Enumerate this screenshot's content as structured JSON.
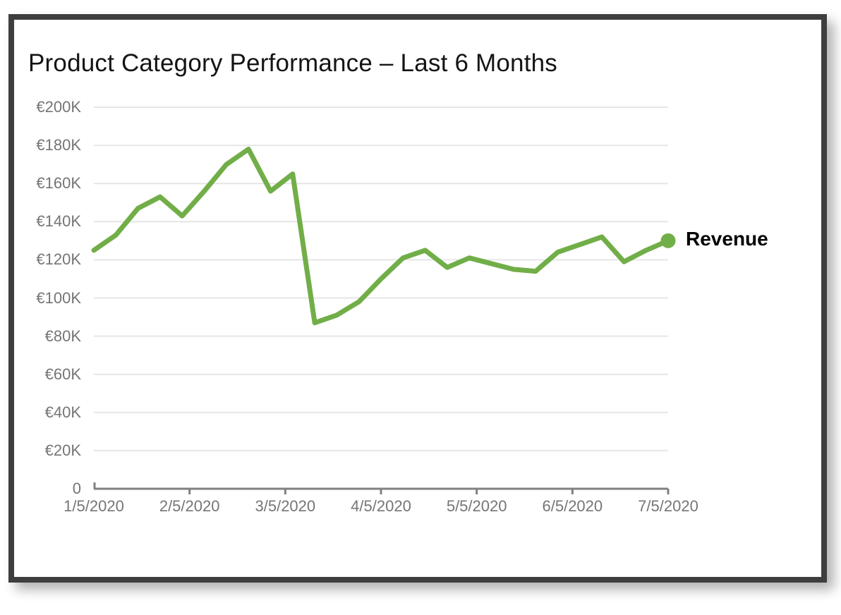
{
  "card": {
    "border_color": "#3E3E3E",
    "background": "#ffffff"
  },
  "chart_data": {
    "type": "line",
    "title": "Product Category Performance – Last 6 Months",
    "x": [
      "1/5/2020",
      "1/12/2020",
      "1/19/2020",
      "1/26/2020",
      "2/2/2020",
      "2/9/2020",
      "2/16/2020",
      "2/23/2020",
      "3/1/2020",
      "3/8/2020",
      "3/15/2020",
      "3/22/2020",
      "3/29/2020",
      "4/5/2020",
      "4/12/2020",
      "4/19/2020",
      "4/26/2020",
      "5/3/2020",
      "5/10/2020",
      "5/17/2020",
      "5/24/2020",
      "5/31/2020",
      "6/7/2020",
      "6/14/2020",
      "6/21/2020",
      "6/28/2020",
      "7/5/2020"
    ],
    "series": [
      {
        "name": "Revenue",
        "color": "#71AE48",
        "values": [
          125000,
          133000,
          147000,
          153000,
          143000,
          156000,
          170000,
          178000,
          156000,
          165000,
          87000,
          91000,
          98000,
          110000,
          121000,
          125000,
          116000,
          121000,
          118000,
          115000,
          114000,
          124000,
          128000,
          132000,
          119000,
          125000,
          130000
        ]
      }
    ],
    "x_tick_labels": [
      "1/5/2020",
      "2/5/2020",
      "3/5/2020",
      "4/5/2020",
      "5/5/2020",
      "6/5/2020",
      "7/5/2020"
    ],
    "y_tick_labels": [
      "0",
      "€20K",
      "€40K",
      "€60K",
      "€80K",
      "€100K",
      "€120K",
      "€140K",
      "€160K",
      "€180K",
      "€200K"
    ],
    "ylim": [
      0,
      200000
    ],
    "y_tick_step": 20000,
    "grid": "horizontal",
    "legend": {
      "label": "Revenue",
      "position": "end-of-line",
      "marker": "circle-dot"
    },
    "colors": {
      "line": "#71AE48",
      "gridline": "#E6E6E6",
      "axis_line": "#808080",
      "tick_label": "#757575",
      "title": "#141414",
      "legend_text": "#000000"
    }
  }
}
